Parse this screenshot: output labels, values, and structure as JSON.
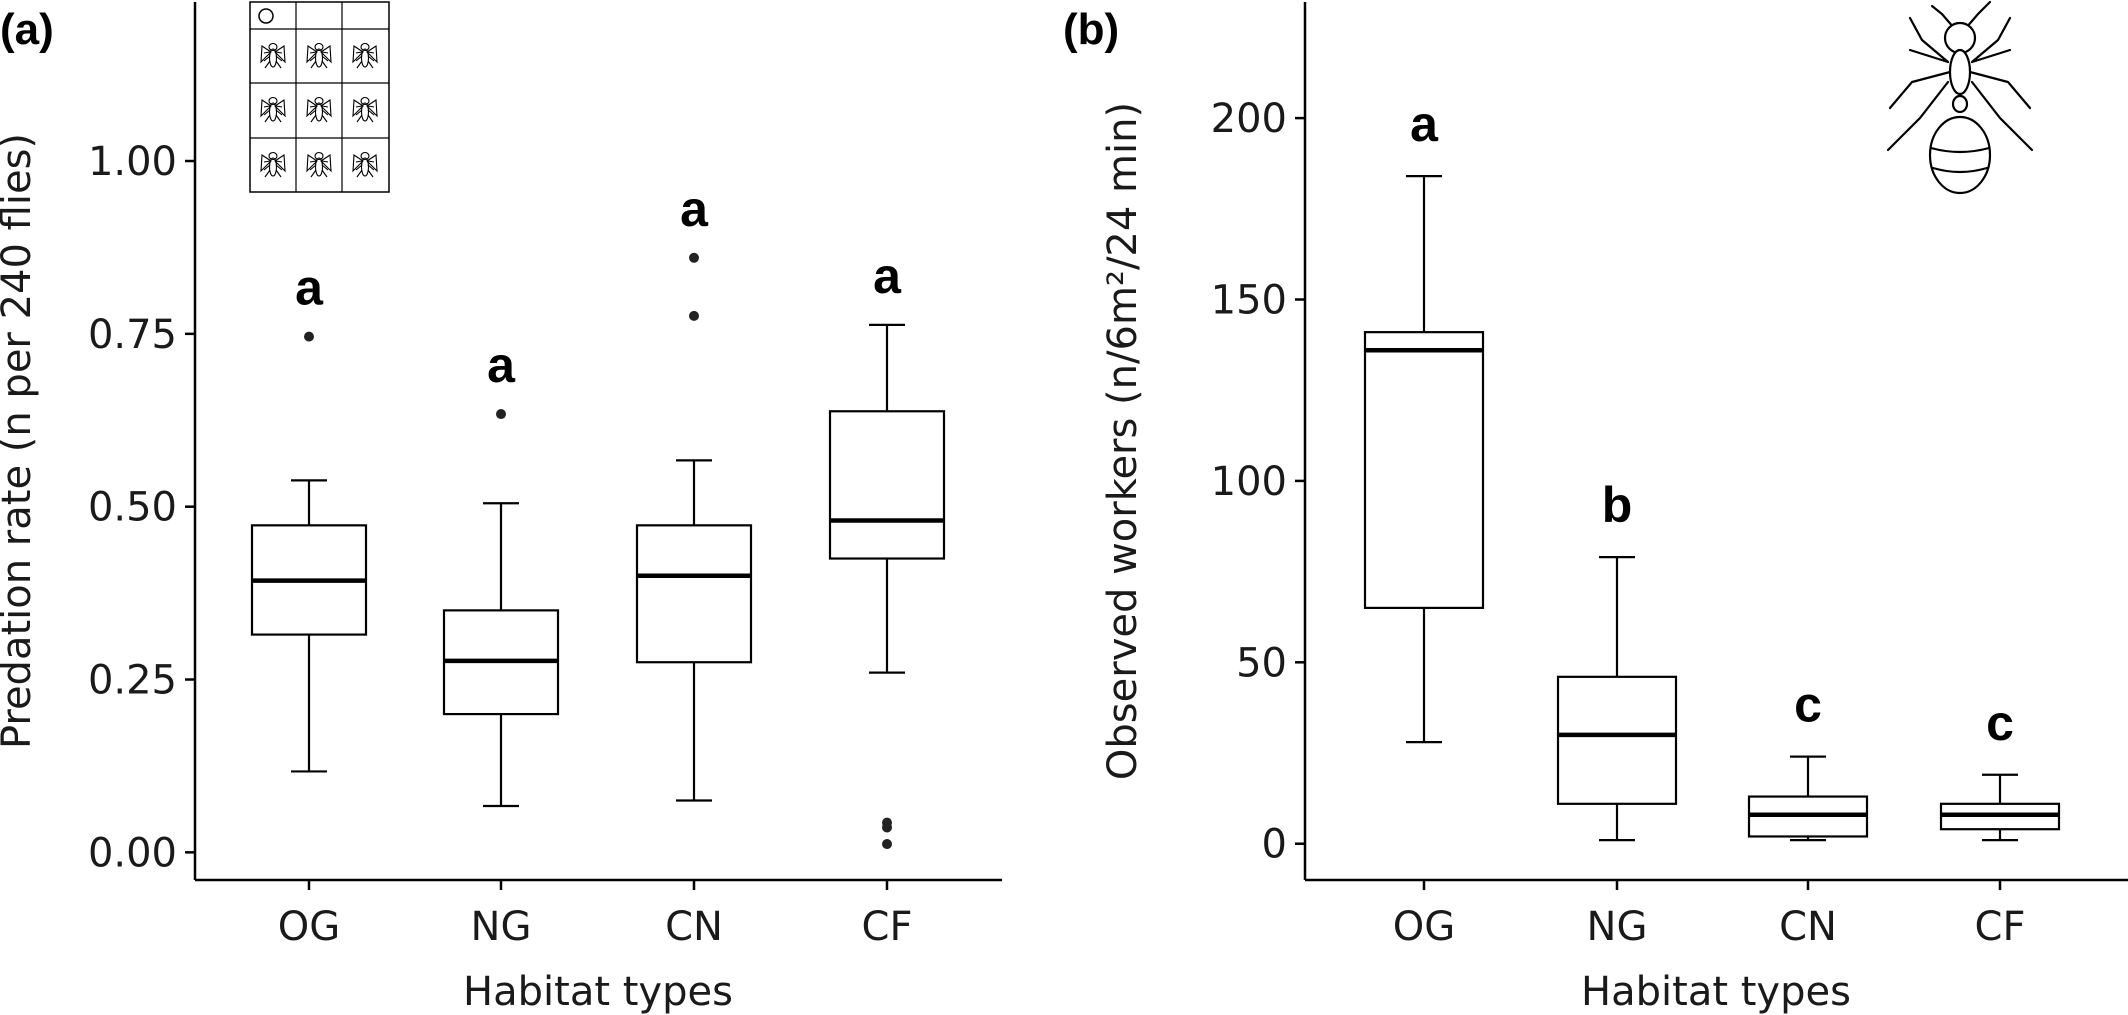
{
  "chart_data": [
    {
      "type": "box",
      "panel": "(a)",
      "xlabel": "Habitat types",
      "ylabel": "Predation rate (n per 240 flies)",
      "ylim": [
        -0.04,
        1.23
      ],
      "yticks": [
        0,
        0.25,
        0.5,
        0.75,
        1.0
      ],
      "ytick_labels": [
        "0.00",
        "0.25",
        "0.50",
        "0.75",
        "1.00"
      ],
      "categories": [
        "OG",
        "NG",
        "CN",
        "CF"
      ],
      "boxes": [
        {
          "q1": 0.315,
          "median": 0.393,
          "q3": 0.473,
          "whisker_low": 0.117,
          "whisker_high": 0.538,
          "outliers": [
            0.746
          ],
          "letter": "a"
        },
        {
          "q1": 0.2,
          "median": 0.277,
          "q3": 0.35,
          "whisker_low": 0.067,
          "whisker_high": 0.505,
          "outliers": [
            0.634
          ],
          "letter": "a"
        },
        {
          "q1": 0.275,
          "median": 0.4,
          "q3": 0.473,
          "whisker_low": 0.075,
          "whisker_high": 0.567,
          "outliers": [
            0.776,
            0.86
          ],
          "letter": "a"
        },
        {
          "q1": 0.425,
          "median": 0.48,
          "q3": 0.638,
          "whisker_low": 0.26,
          "whisker_high": 0.763,
          "outliers": [
            0.012,
            0.036,
            0.043
          ],
          "letter": "a"
        }
      ],
      "legend": "none",
      "grid": false,
      "icon": "fly-grid-icon"
    },
    {
      "type": "box",
      "panel": "(b)",
      "xlabel": "Habitat types",
      "ylabel": "Observed workers (n/6m²/24 min)",
      "ylim": [
        -10,
        232
      ],
      "yticks": [
        0,
        50,
        100,
        150,
        200
      ],
      "ytick_labels": [
        "0",
        "50",
        "100",
        "150",
        "200"
      ],
      "categories": [
        "OG",
        "NG",
        "CN",
        "CF"
      ],
      "boxes": [
        {
          "q1": 65,
          "median": 136,
          "q3": 141,
          "whisker_low": 28,
          "whisker_high": 184,
          "outliers": [],
          "letter": "a"
        },
        {
          "q1": 11,
          "median": 30,
          "q3": 46,
          "whisker_low": 1,
          "whisker_high": 79,
          "outliers": [],
          "letter": "b"
        },
        {
          "q1": 2,
          "median": 8,
          "q3": 13,
          "whisker_low": 1,
          "whisker_high": 24,
          "outliers": [],
          "letter": "c"
        },
        {
          "q1": 4,
          "median": 8,
          "q3": 11,
          "whisker_low": 1,
          "whisker_high": 19,
          "outliers": [],
          "letter": "c"
        }
      ],
      "legend": "none",
      "grid": false,
      "icon": "ant-icon"
    }
  ]
}
